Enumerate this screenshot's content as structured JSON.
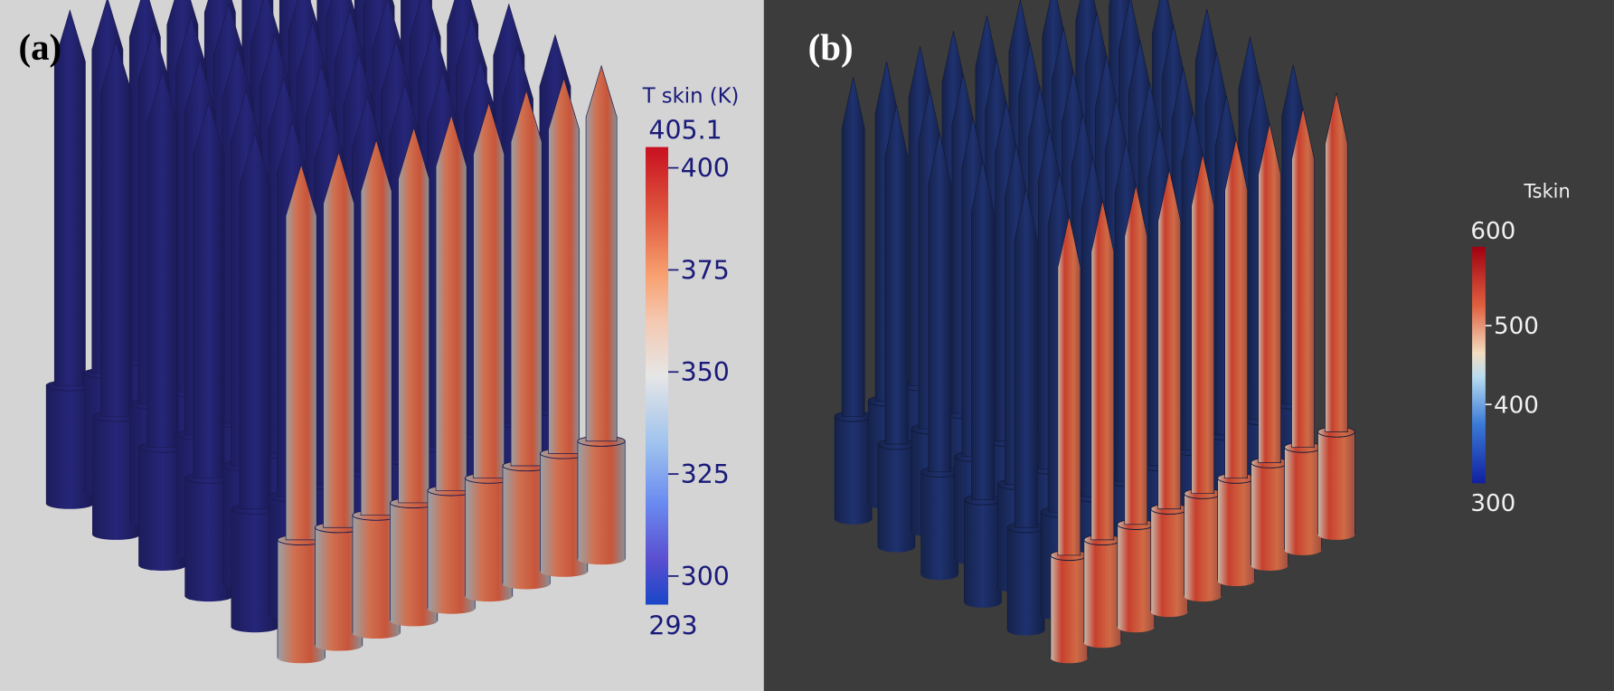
{
  "panels": [
    {
      "label": "(a)",
      "colorbar": {
        "title": "T skin (K)",
        "min": 293,
        "max": 405.1,
        "ticks": [
          300,
          325,
          350,
          375,
          400
        ]
      }
    },
    {
      "label": "(b)",
      "colorbar": {
        "title": "Tskin",
        "min": 300,
        "max": 600,
        "ticks": [
          400,
          500
        ]
      }
    }
  ]
}
